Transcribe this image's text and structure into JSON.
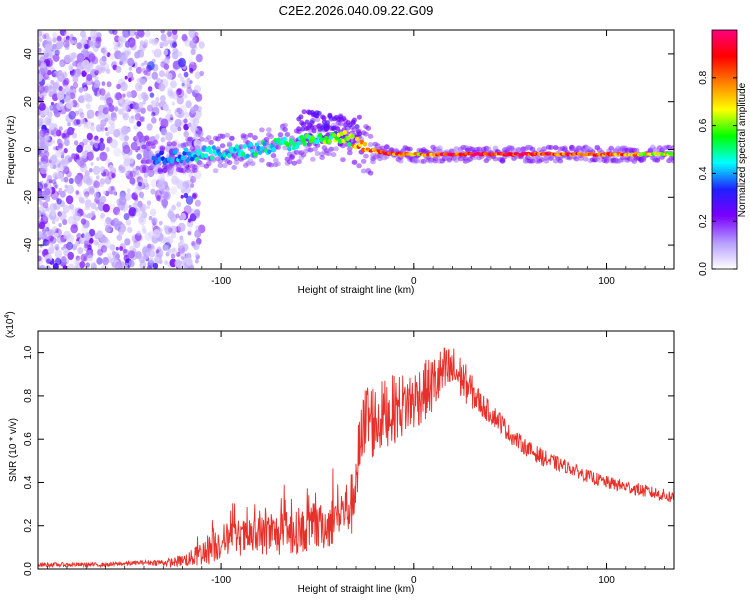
{
  "title": "C2E2.2026.040.09.22.G09",
  "chart_data": [
    {
      "type": "heatmap",
      "xlabel": "Height of straight line (km)",
      "ylabel": "Frequency (Hz)",
      "xlim": [
        -195,
        135
      ],
      "ylim": [
        -50,
        50
      ],
      "xticks": [
        -100,
        0,
        100
      ],
      "yticks": [
        -40,
        -20,
        0,
        20,
        40
      ],
      "colorbar": {
        "label": "Normalized spectral amplitude",
        "range": [
          0,
          1
        ],
        "ticks": [
          0.0,
          0.2,
          0.4,
          0.6,
          0.8
        ],
        "colors": [
          "#ffffff",
          "#b59cff",
          "#7a00ff",
          "#2020ff",
          "#00ffff",
          "#00ff00",
          "#ffff00",
          "#ff8000",
          "#ff0000",
          "#ff007f"
        ]
      },
      "ridge": {
        "x": [
          -130,
          -110,
          -90,
          -70,
          -50,
          -35,
          -25,
          -10,
          0,
          20,
          60,
          100,
          135
        ],
        "freq": [
          -3,
          -2,
          -1,
          2,
          4,
          5,
          0,
          -2,
          -2,
          -2,
          -2,
          -2,
          -2
        ],
        "amplitude": [
          0.35,
          0.45,
          0.45,
          0.5,
          0.55,
          0.6,
          0.85,
          0.85,
          0.7,
          0.9,
          0.9,
          0.85,
          0.6
        ]
      }
    },
    {
      "type": "line",
      "xlabel": "Height of straight line (km)",
      "ylabel": "SNR (10 * v/v)",
      "yscale_label": "(x10",
      "yscale_exp": "4",
      "yscale_close": ")",
      "xlim": [
        -195,
        135
      ],
      "ylim": [
        0,
        1.1
      ],
      "xticks": [
        -100,
        0,
        100
      ],
      "yticks": [
        0.0,
        0.2,
        0.4,
        0.6,
        0.8,
        1.0
      ],
      "series": [
        {
          "name": "SNR",
          "color": "#e8302a",
          "x": [
            -195,
            -180,
            -160,
            -140,
            -125,
            -115,
            -105,
            -95,
            -85,
            -75,
            -65,
            -55,
            -45,
            -38,
            -32,
            -28,
            -24,
            -20,
            -15,
            -10,
            -5,
            0,
            5,
            10,
            15,
            20,
            25,
            30,
            35,
            40,
            45,
            50,
            60,
            70,
            80,
            90,
            100,
            110,
            120,
            130,
            135
          ],
          "y": [
            0.02,
            0.02,
            0.02,
            0.03,
            0.03,
            0.05,
            0.1,
            0.15,
            0.14,
            0.16,
            0.16,
            0.18,
            0.2,
            0.26,
            0.3,
            0.55,
            0.7,
            0.68,
            0.72,
            0.74,
            0.76,
            0.78,
            0.82,
            0.85,
            0.9,
            0.92,
            0.88,
            0.82,
            0.76,
            0.72,
            0.68,
            0.62,
            0.55,
            0.5,
            0.47,
            0.43,
            0.4,
            0.38,
            0.36,
            0.34,
            0.33
          ],
          "noise": [
            0.01,
            0.01,
            0.01,
            0.01,
            0.02,
            0.04,
            0.08,
            0.08,
            0.09,
            0.1,
            0.1,
            0.1,
            0.11,
            0.12,
            0.15,
            0.18,
            0.2,
            0.18,
            0.16,
            0.16,
            0.15,
            0.15,
            0.14,
            0.14,
            0.13,
            0.12,
            0.1,
            0.08,
            0.06,
            0.05,
            0.05,
            0.04,
            0.04,
            0.04,
            0.03,
            0.03,
            0.03,
            0.03,
            0.03,
            0.03,
            0.03
          ]
        }
      ]
    }
  ]
}
